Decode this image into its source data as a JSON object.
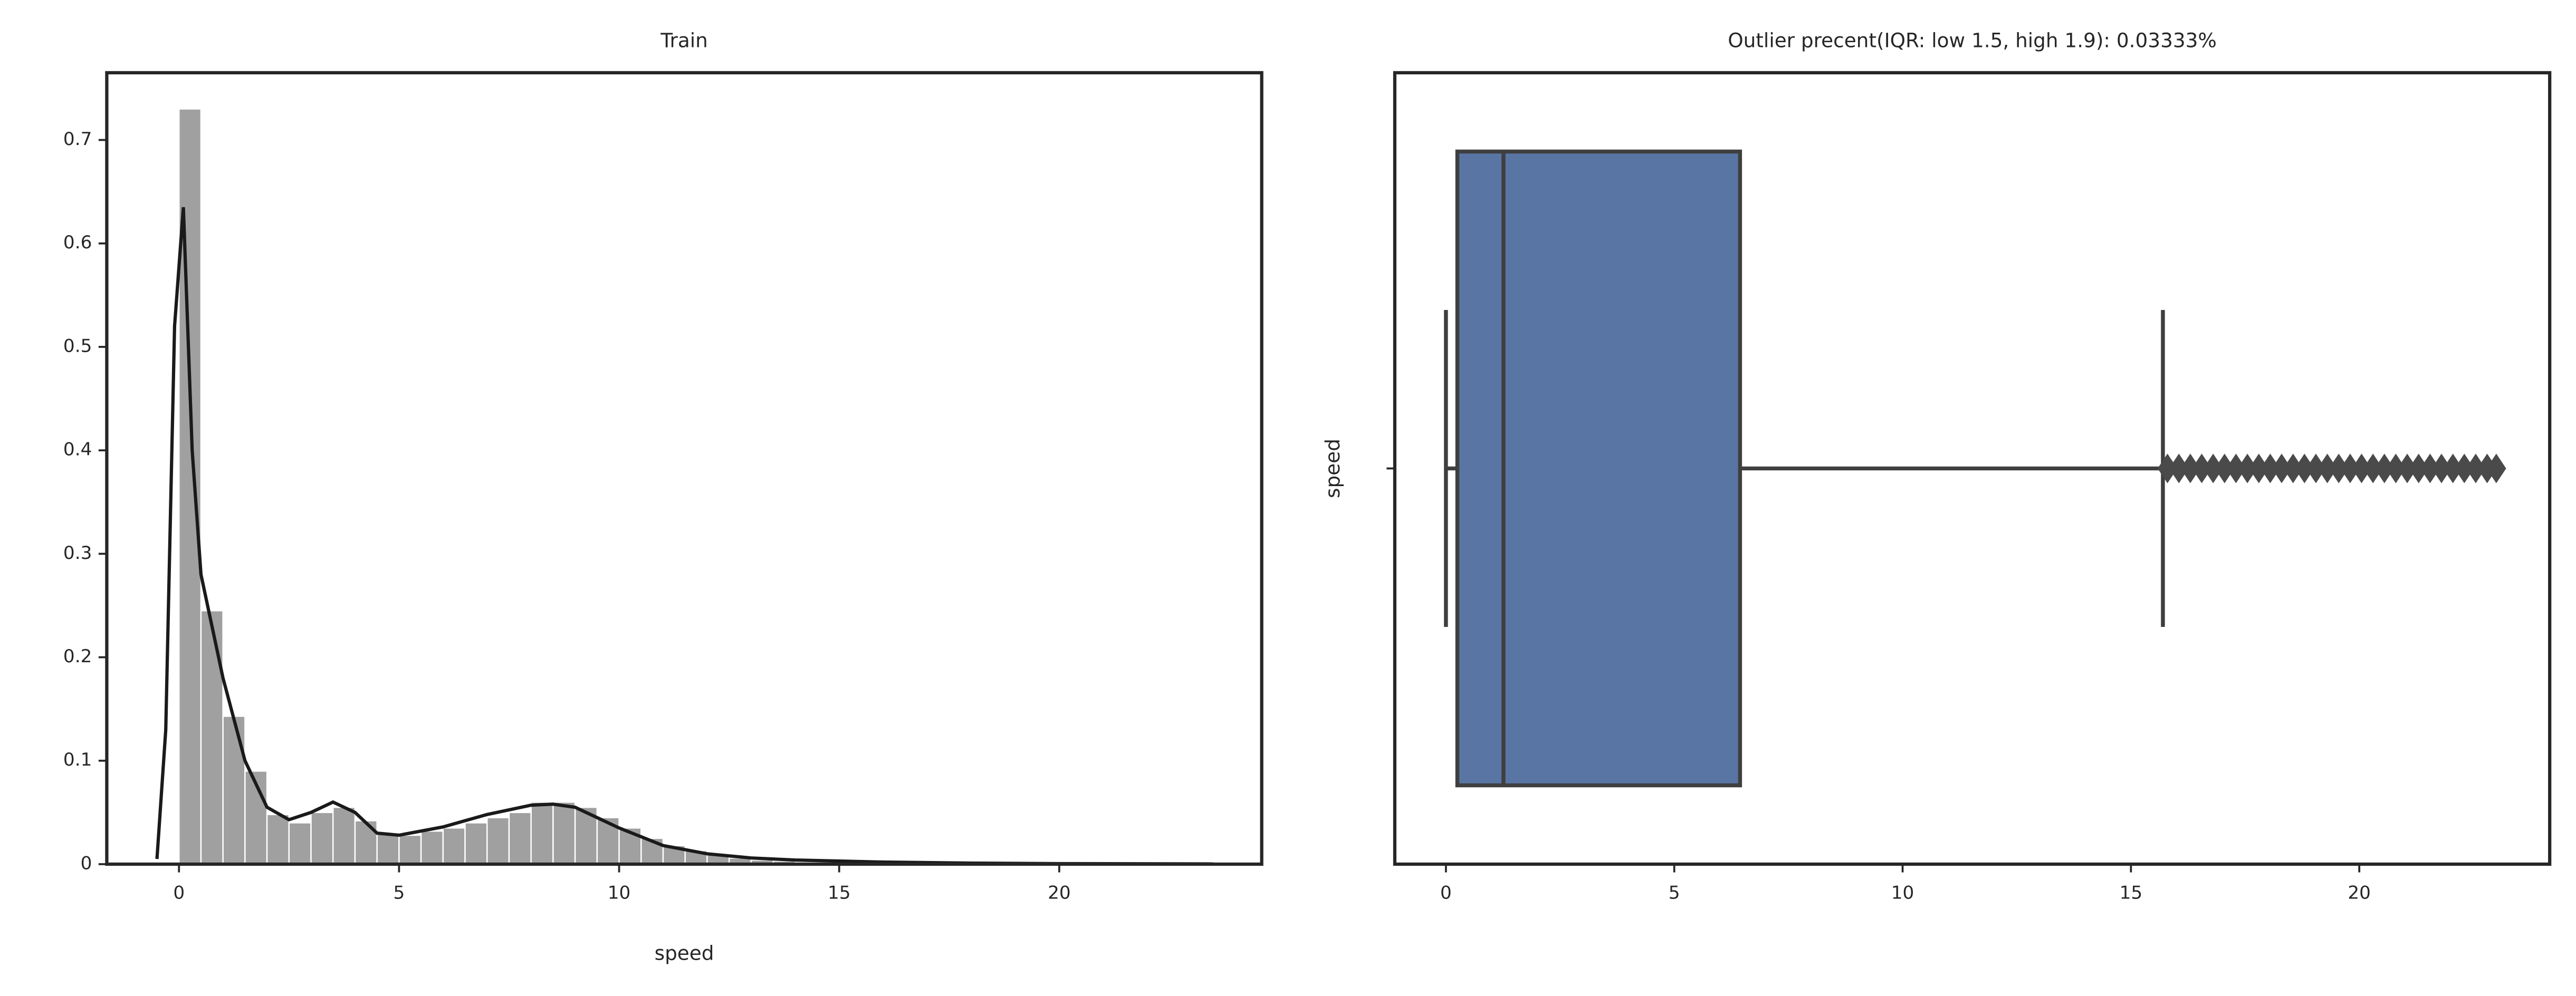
{
  "chart_data": [
    {
      "type": "histogram",
      "title": "Train",
      "xlabel": "speed",
      "bins": [
        0,
        0.5,
        1,
        1.5,
        2,
        2.5,
        3,
        3.5,
        4,
        4.5,
        5,
        5.5,
        6,
        6.5,
        7,
        7.5,
        8,
        8.5,
        9,
        9.5,
        10,
        10.5,
        11,
        11.5,
        12,
        12.5,
        13,
        13.5,
        14,
        14.5,
        15,
        15.5,
        16,
        16.5,
        17,
        17.5,
        18,
        18.5,
        19,
        19.5,
        20,
        20.5,
        21,
        21.5,
        22,
        22.5,
        23,
        23.5
      ],
      "values": [
        0.73,
        0.245,
        0.143,
        0.09,
        0.048,
        0.04,
        0.05,
        0.055,
        0.042,
        0.03,
        0.028,
        0.032,
        0.035,
        0.04,
        0.045,
        0.05,
        0.06,
        0.06,
        0.055,
        0.045,
        0.035,
        0.025,
        0.018,
        0.013,
        0.009,
        0.006,
        0.004,
        0.003,
        0.002,
        0.0015,
        0.001,
        0.001,
        0.0008,
        0.0006,
        0.0005,
        0.0004,
        0.0003,
        0.0003,
        0.0002,
        0.0002,
        0.0002,
        0.0001,
        0.0001,
        0.0001,
        0.0001,
        0.0001,
        0.0001
      ],
      "color": "#a0a0a0",
      "kde": {
        "x": [
          -0.5,
          -0.3,
          -0.1,
          0.1,
          0.3,
          0.5,
          0.8,
          1,
          1.5,
          2,
          2.5,
          3,
          3.5,
          4,
          4.5,
          5,
          6,
          7,
          8,
          8.5,
          9,
          10,
          11,
          12,
          13,
          14,
          16,
          18,
          20,
          23.5
        ],
        "y": [
          0.005,
          0.13,
          0.52,
          0.635,
          0.4,
          0.28,
          0.22,
          0.18,
          0.1,
          0.055,
          0.043,
          0.05,
          0.06,
          0.05,
          0.03,
          0.028,
          0.036,
          0.048,
          0.057,
          0.058,
          0.055,
          0.035,
          0.018,
          0.01,
          0.006,
          0.004,
          0.002,
          0.001,
          0.0005,
          0.0002
        ],
        "color": "#1a1a1a"
      },
      "xlim": [
        -1.64,
        24.6
      ],
      "ylim": [
        0,
        0.765
      ],
      "xticks": [
        0,
        5,
        10,
        15,
        20
      ],
      "yticks": [
        0.0,
        0.1,
        0.2,
        0.3,
        0.4,
        0.5,
        0.6,
        0.7
      ]
    },
    {
      "type": "box",
      "title": "Outlier precent(IQR: low 1.5, high 1.9): 0.03333%",
      "ylabel": "speed",
      "whislo": 0,
      "q1": 0.25,
      "median": 1.26,
      "q3": 6.44,
      "whishi": 15.7,
      "fliers": [
        15.8,
        16.05,
        16.3,
        16.55,
        16.8,
        17.05,
        17.3,
        17.55,
        17.8,
        18.05,
        18.3,
        18.55,
        18.8,
        19.05,
        19.3,
        19.55,
        19.8,
        20.05,
        20.3,
        20.55,
        20.8,
        21.05,
        21.3,
        21.55,
        21.8,
        22.05,
        22.3,
        22.55,
        22.8,
        23.0
      ],
      "color": "#5875a4",
      "flier_color": "#4a4a4a",
      "xlim": [
        -1.12,
        24.17
      ],
      "xticks": [
        0,
        5,
        10,
        15,
        20
      ]
    }
  ]
}
